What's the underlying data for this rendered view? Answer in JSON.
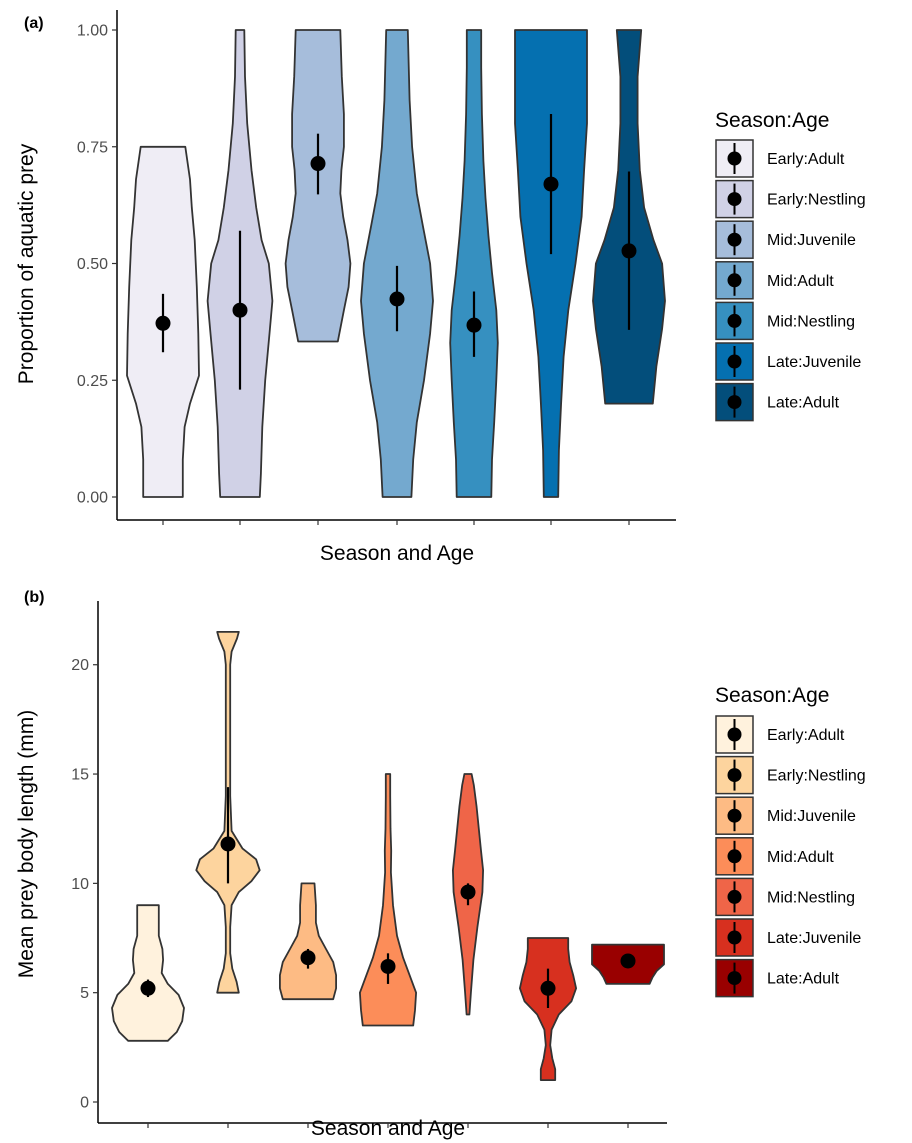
{
  "chart_data": [
    {
      "type": "violin",
      "panel_tag": "(a)",
      "xlabel": "Season and Age",
      "ylabel": "Proportion of aquatic prey",
      "ylim": [
        0,
        1
      ],
      "yticks": [
        0,
        0.25,
        0.5,
        0.75,
        1
      ],
      "ytick_labels": [
        "0.00",
        "0.25",
        "0.50",
        "0.75",
        "1.00"
      ],
      "grid": false,
      "legend_title": "Season:Age",
      "legend_position": "right",
      "categories": [
        "Early:Adult",
        "Early:Nestling",
        "Mid:Juvenile",
        "Mid:Adult",
        "Mid:Nestling",
        "Late:Juvenile",
        "Late:Adult"
      ],
      "colors": [
        "#efedf5",
        "#d0d1e6",
        "#a6bddb",
        "#74a9cf",
        "#3690c0",
        "#0570b0",
        "#034e7b"
      ],
      "means": [
        0.372,
        0.4,
        0.714,
        0.424,
        0.368,
        0.67,
        0.527
      ],
      "ci_low": [
        0.31,
        0.23,
        0.648,
        0.355,
        0.3,
        0.52,
        0.358
      ],
      "ci_high": [
        0.435,
        0.57,
        0.778,
        0.495,
        0.44,
        0.82,
        0.697
      ],
      "violins": [
        {
          "range": [
            0,
            0.75
          ],
          "widths": [
            [
              0,
              0.55
            ],
            [
              0.08,
              0.55
            ],
            [
              0.15,
              0.6
            ],
            [
              0.2,
              0.75
            ],
            [
              0.26,
              1.0
            ],
            [
              0.35,
              0.98
            ],
            [
              0.45,
              0.94
            ],
            [
              0.55,
              0.88
            ],
            [
              0.62,
              0.8
            ],
            [
              0.68,
              0.75
            ],
            [
              0.75,
              0.62
            ]
          ]
        },
        {
          "range": [
            0,
            1
          ],
          "widths": [
            [
              0,
              0.55
            ],
            [
              0.05,
              0.58
            ],
            [
              0.15,
              0.62
            ],
            [
              0.25,
              0.7
            ],
            [
              0.35,
              0.82
            ],
            [
              0.42,
              0.9
            ],
            [
              0.5,
              0.8
            ],
            [
              0.55,
              0.6
            ],
            [
              0.62,
              0.45
            ],
            [
              0.7,
              0.32
            ],
            [
              0.8,
              0.2
            ],
            [
              0.9,
              0.14
            ],
            [
              1.0,
              0.12
            ]
          ]
        },
        {
          "range": [
            0.333,
            1
          ],
          "widths": [
            [
              0.333,
              0.55
            ],
            [
              0.4,
              0.72
            ],
            [
              0.45,
              0.85
            ],
            [
              0.5,
              0.9
            ],
            [
              0.55,
              0.82
            ],
            [
              0.6,
              0.7
            ],
            [
              0.65,
              0.62
            ],
            [
              0.7,
              0.65
            ],
            [
              0.75,
              0.72
            ],
            [
              0.82,
              0.72
            ],
            [
              0.9,
              0.66
            ],
            [
              1.0,
              0.62
            ]
          ]
        },
        {
          "range": [
            0,
            1
          ],
          "widths": [
            [
              0,
              0.4
            ],
            [
              0.08,
              0.45
            ],
            [
              0.16,
              0.55
            ],
            [
              0.25,
              0.75
            ],
            [
              0.35,
              0.92
            ],
            [
              0.42,
              1.0
            ],
            [
              0.5,
              0.92
            ],
            [
              0.58,
              0.72
            ],
            [
              0.65,
              0.55
            ],
            [
              0.75,
              0.42
            ],
            [
              0.85,
              0.35
            ],
            [
              1.0,
              0.3
            ]
          ]
        },
        {
          "range": [
            0,
            1
          ],
          "widths": [
            [
              0,
              0.48
            ],
            [
              0.08,
              0.5
            ],
            [
              0.16,
              0.56
            ],
            [
              0.25,
              0.62
            ],
            [
              0.33,
              0.66
            ],
            [
              0.4,
              0.62
            ],
            [
              0.48,
              0.5
            ],
            [
              0.56,
              0.4
            ],
            [
              0.64,
              0.32
            ],
            [
              0.72,
              0.26
            ],
            [
              0.82,
              0.22
            ],
            [
              0.92,
              0.2
            ],
            [
              1.0,
              0.2
            ]
          ]
        },
        {
          "range": [
            0,
            1
          ],
          "widths": [
            [
              0,
              0.2
            ],
            [
              0.1,
              0.22
            ],
            [
              0.2,
              0.28
            ],
            [
              0.3,
              0.35
            ],
            [
              0.4,
              0.48
            ],
            [
              0.5,
              0.68
            ],
            [
              0.6,
              0.85
            ],
            [
              0.7,
              0.92
            ],
            [
              0.8,
              1.0
            ],
            [
              0.9,
              1.0
            ],
            [
              1.0,
              1.0
            ]
          ]
        },
        {
          "range": [
            0.2,
            1
          ],
          "widths": [
            [
              0.2,
              0.66
            ],
            [
              0.28,
              0.76
            ],
            [
              0.36,
              0.92
            ],
            [
              0.42,
              1.0
            ],
            [
              0.5,
              0.92
            ],
            [
              0.55,
              0.68
            ],
            [
              0.62,
              0.42
            ],
            [
              0.7,
              0.3
            ],
            [
              0.8,
              0.24
            ],
            [
              0.9,
              0.24
            ],
            [
              1.0,
              0.34
            ]
          ]
        }
      ]
    },
    {
      "type": "violin",
      "panel_tag": "(b)",
      "xlabel": "Season and Age",
      "ylabel": "Mean prey body length (mm)",
      "ylim": [
        0,
        22
      ],
      "yticks": [
        0,
        5,
        10,
        15,
        20
      ],
      "ytick_labels": [
        "0",
        "5",
        "10",
        "15",
        "20"
      ],
      "grid": false,
      "legend_title": "Season:Age",
      "legend_position": "right",
      "categories": [
        "Early:Adult",
        "Early:Nestling",
        "Mid:Juvenile",
        "Mid:Adult",
        "Mid:Nestling",
        "Late:Juvenile",
        "Late:Adult"
      ],
      "colors": [
        "#fff2dd",
        "#fdd49e",
        "#fdbb84",
        "#fc8d59",
        "#ef6548",
        "#d7301f",
        "#990000"
      ],
      "means": [
        5.2,
        11.8,
        6.6,
        6.2,
        9.6,
        5.2,
        6.45
      ],
      "ci_low": [
        4.8,
        10.0,
        6.1,
        5.4,
        9.0,
        4.3,
        6.2
      ],
      "ci_high": [
        5.6,
        14.4,
        7.0,
        6.8,
        10.0,
        6.1,
        6.7
      ],
      "violins": [
        {
          "range": [
            2.8,
            9
          ],
          "widths": [
            [
              2.8,
              0.55
            ],
            [
              3.2,
              0.8
            ],
            [
              3.7,
              0.95
            ],
            [
              4.3,
              1.0
            ],
            [
              4.9,
              0.85
            ],
            [
              5.4,
              0.55
            ],
            [
              5.9,
              0.38
            ],
            [
              6.5,
              0.42
            ],
            [
              7.0,
              0.4
            ],
            [
              7.6,
              0.3
            ],
            [
              8.2,
              0.3
            ],
            [
              9.0,
              0.3
            ]
          ]
        },
        {
          "range": [
            5,
            21.5
          ],
          "widths": [
            [
              5,
              0.3
            ],
            [
              5.5,
              0.24
            ],
            [
              6.1,
              0.12
            ],
            [
              6.8,
              0.06
            ],
            [
              8,
              0.06
            ],
            [
              9,
              0.1
            ],
            [
              9.6,
              0.3
            ],
            [
              10.1,
              0.65
            ],
            [
              10.6,
              0.88
            ],
            [
              11.1,
              0.78
            ],
            [
              11.6,
              0.4
            ],
            [
              12.4,
              0.1
            ],
            [
              14,
              0.06
            ],
            [
              17,
              0.06
            ],
            [
              20,
              0.06
            ],
            [
              20.6,
              0.1
            ],
            [
              21.2,
              0.25
            ],
            [
              21.5,
              0.3
            ]
          ]
        },
        {
          "range": [
            4.7,
            10
          ],
          "widths": [
            [
              4.7,
              0.7
            ],
            [
              5.2,
              0.78
            ],
            [
              5.8,
              0.78
            ],
            [
              6.4,
              0.7
            ],
            [
              7.0,
              0.5
            ],
            [
              7.6,
              0.3
            ],
            [
              8.2,
              0.22
            ],
            [
              9.0,
              0.22
            ],
            [
              10.0,
              0.18
            ]
          ]
        },
        {
          "range": [
            3.5,
            15
          ],
          "widths": [
            [
              3.5,
              0.7
            ],
            [
              4.2,
              0.75
            ],
            [
              5.0,
              0.78
            ],
            [
              5.8,
              0.6
            ],
            [
              6.6,
              0.42
            ],
            [
              7.6,
              0.25
            ],
            [
              9.0,
              0.14
            ],
            [
              10.5,
              0.08
            ],
            [
              11.5,
              0.09
            ],
            [
              12.5,
              0.07
            ],
            [
              14.0,
              0.06
            ],
            [
              15.0,
              0.06
            ]
          ]
        },
        {
          "range": [
            4,
            15
          ],
          "widths": [
            [
              4,
              0.04
            ],
            [
              5,
              0.08
            ],
            [
              6.5,
              0.15
            ],
            [
              8,
              0.26
            ],
            [
              9.6,
              0.4
            ],
            [
              10.6,
              0.42
            ],
            [
              11.5,
              0.36
            ],
            [
              12.5,
              0.3
            ],
            [
              13.5,
              0.24
            ],
            [
              14.5,
              0.16
            ],
            [
              15,
              0.1
            ]
          ]
        },
        {
          "range": [
            1,
            7.5
          ],
          "widths": [
            [
              1,
              0.2
            ],
            [
              1.5,
              0.2
            ],
            [
              2.0,
              0.12
            ],
            [
              2.6,
              0.06
            ],
            [
              3.3,
              0.1
            ],
            [
              4.0,
              0.3
            ],
            [
              4.6,
              0.65
            ],
            [
              5.2,
              0.78
            ],
            [
              5.8,
              0.7
            ],
            [
              6.4,
              0.6
            ],
            [
              7.0,
              0.56
            ],
            [
              7.5,
              0.56
            ]
          ]
        },
        {
          "range": [
            5.4,
            7.2
          ],
          "widths": [
            [
              5.4,
              0.6
            ],
            [
              5.7,
              0.68
            ],
            [
              6.0,
              0.8
            ],
            [
              6.3,
              1.0
            ],
            [
              6.6,
              1.0
            ],
            [
              6.9,
              1.0
            ],
            [
              7.2,
              1.0
            ]
          ]
        }
      ]
    }
  ]
}
